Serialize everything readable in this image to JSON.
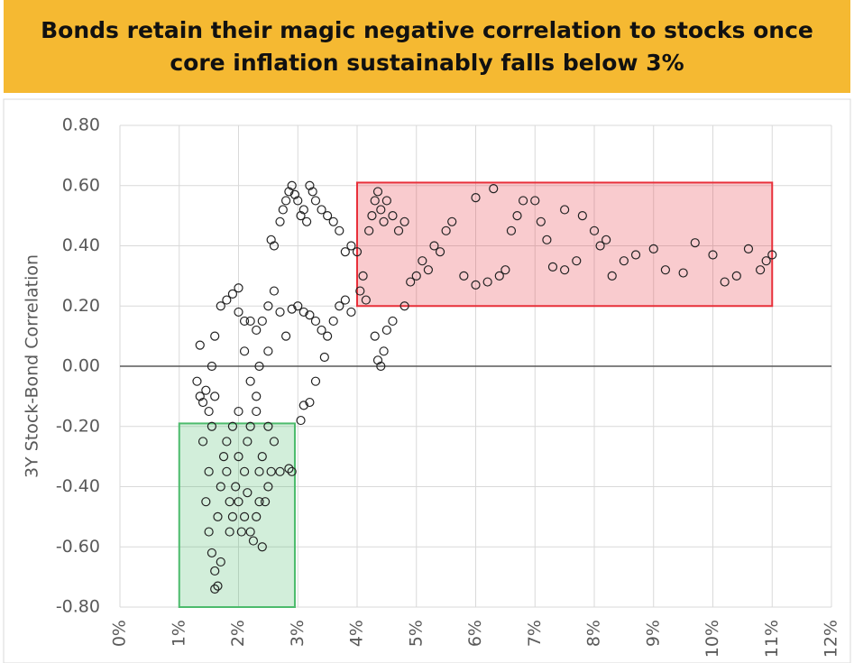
{
  "chart_data": {
    "type": "scatter",
    "title_lines": [
      "Bonds retain their magic negative correlation to stocks once",
      "core inflation sustainably falls below 3%"
    ],
    "y_label": "3Y Stock-Bond Correlation",
    "xlim": [
      0,
      12
    ],
    "xticks": [
      {
        "value": 0,
        "label": "0%"
      },
      {
        "value": 1,
        "label": "1%"
      },
      {
        "value": 2,
        "label": "2%"
      },
      {
        "value": 3,
        "label": "3%"
      },
      {
        "value": 4,
        "label": "4%"
      },
      {
        "value": 5,
        "label": "5%"
      },
      {
        "value": 6,
        "label": "6%"
      },
      {
        "value": 7,
        "label": "7%"
      },
      {
        "value": 8,
        "label": "8%"
      },
      {
        "value": 9,
        "label": "9%"
      },
      {
        "value": 10,
        "label": "10%"
      },
      {
        "value": 11,
        "label": "11%"
      },
      {
        "value": 12,
        "label": "12%"
      }
    ],
    "ylim": [
      -0.8,
      0.8
    ],
    "yticks": [
      {
        "value": -0.8,
        "label": "-0.80"
      },
      {
        "value": -0.6,
        "label": "-0.60"
      },
      {
        "value": -0.4,
        "label": "-0.40"
      },
      {
        "value": -0.2,
        "label": "-0.20"
      },
      {
        "value": 0,
        "label": "0.00"
      },
      {
        "value": 0.2,
        "label": "0.20"
      },
      {
        "value": 0.4,
        "label": "0.40"
      },
      {
        "value": 0.6,
        "label": "0.60"
      },
      {
        "value": 0.8,
        "label": "0.80"
      }
    ],
    "grid": true,
    "color": "#222222",
    "regions": [
      {
        "x": [
          4,
          11
        ],
        "y": [
          0.2,
          0.61
        ],
        "color": "#e8303a"
      },
      {
        "x": [
          1,
          2.95
        ],
        "y": [
          -0.8,
          -0.19
        ],
        "color": "#4cbb6c"
      }
    ],
    "x": [
      1.3,
      1.35,
      1.4,
      1.45,
      1.5,
      1.55,
      1.6,
      1.4,
      1.5,
      1.45,
      1.5,
      1.55,
      1.6,
      1.6,
      1.65,
      1.7,
      1.65,
      1.7,
      1.75,
      1.8,
      1.8,
      1.85,
      1.85,
      1.9,
      1.95,
      2.0,
      2.0,
      2.05,
      2.1,
      2.1,
      2.15,
      2.15,
      2.2,
      2.25,
      2.3,
      2.35,
      2.35,
      2.4,
      2.4,
      2.45,
      2.5,
      2.55,
      2.6,
      2.7,
      2.85,
      2.9,
      1.9,
      2.0,
      2.2,
      2.3,
      2.5,
      1.35,
      1.55,
      1.6,
      1.7,
      1.8,
      1.9,
      2.0,
      2.0,
      2.1,
      2.1,
      2.2,
      2.2,
      2.3,
      2.4,
      2.35,
      2.3,
      2.5,
      2.5,
      2.6,
      2.7,
      2.8,
      2.55,
      2.6,
      2.7,
      2.75,
      2.8,
      2.85,
      2.9,
      2.95,
      3.0,
      3.05,
      3.1,
      3.15,
      3.2,
      3.25,
      3.3,
      3.4,
      3.5,
      3.6,
      3.7,
      2.9,
      3.0,
      3.1,
      3.2,
      3.3,
      3.4,
      3.5,
      3.6,
      3.7,
      3.8,
      3.9,
      3.1,
      3.05,
      3.2,
      3.3,
      3.45,
      3.8,
      3.9,
      4.0,
      4.05,
      4.1,
      4.15,
      4.2,
      4.25,
      4.3,
      4.35,
      4.4,
      4.45,
      4.5,
      4.6,
      4.7,
      4.8,
      4.3,
      4.35,
      4.4,
      4.45,
      4.5,
      4.6,
      4.8,
      4.9,
      5.0,
      5.1,
      5.2,
      5.3,
      5.4,
      5.5,
      5.6,
      5.8,
      6.0,
      6.2,
      6.4,
      6.5,
      6.6,
      6.7,
      6.8,
      7.0,
      7.1,
      7.2,
      7.3,
      7.5,
      7.7,
      7.8,
      8.0,
      8.1,
      8.3,
      8.5,
      8.7,
      9.0,
      9.2,
      9.5,
      9.7,
      10.0,
      10.2,
      10.4,
      10.6,
      10.8,
      10.9,
      11.0,
      6.0,
      6.3,
      7.5,
      8.2
    ],
    "values": [
      -0.05,
      -0.1,
      -0.12,
      -0.08,
      -0.15,
      -0.2,
      -0.1,
      -0.25,
      -0.35,
      -0.45,
      -0.55,
      -0.62,
      -0.68,
      -0.74,
      -0.73,
      -0.65,
      -0.5,
      -0.4,
      -0.3,
      -0.25,
      -0.35,
      -0.45,
      -0.55,
      -0.5,
      -0.4,
      -0.3,
      -0.45,
      -0.55,
      -0.5,
      -0.35,
      -0.25,
      -0.42,
      -0.55,
      -0.58,
      -0.5,
      -0.45,
      -0.35,
      -0.3,
      -0.6,
      -0.45,
      -0.4,
      -0.35,
      -0.25,
      -0.35,
      -0.34,
      -0.35,
      -0.2,
      -0.15,
      -0.2,
      -0.15,
      -0.2,
      0.07,
      0.0,
      0.1,
      0.2,
      0.22,
      0.24,
      0.26,
      0.18,
      0.15,
      0.05,
      0.15,
      -0.05,
      0.12,
      0.15,
      0.0,
      -0.1,
      0.05,
      0.2,
      0.25,
      0.18,
      0.1,
      0.42,
      0.4,
      0.48,
      0.52,
      0.55,
      0.58,
      0.6,
      0.57,
      0.55,
      0.5,
      0.52,
      0.48,
      0.6,
      0.58,
      0.55,
      0.52,
      0.5,
      0.48,
      0.45,
      0.19,
      0.2,
      0.18,
      0.17,
      0.15,
      0.12,
      0.1,
      0.15,
      0.2,
      0.22,
      0.18,
      -0.13,
      -0.18,
      -0.12,
      -0.05,
      0.03,
      0.38,
      0.4,
      0.38,
      0.25,
      0.3,
      0.22,
      0.45,
      0.5,
      0.55,
      0.58,
      0.52,
      0.48,
      0.55,
      0.5,
      0.45,
      0.48,
      0.1,
      0.02,
      0.0,
      0.05,
      0.12,
      0.15,
      0.2,
      0.28,
      0.3,
      0.35,
      0.32,
      0.4,
      0.38,
      0.45,
      0.48,
      0.3,
      0.27,
      0.28,
      0.3,
      0.32,
      0.45,
      0.5,
      0.55,
      0.55,
      0.48,
      0.42,
      0.33,
      0.32,
      0.35,
      0.5,
      0.45,
      0.4,
      0.3,
      0.35,
      0.37,
      0.39,
      0.32,
      0.31,
      0.41,
      0.37,
      0.28,
      0.3,
      0.39,
      0.32,
      0.35,
      0.37,
      0.56,
      0.59,
      0.52,
      0.42
    ]
  }
}
